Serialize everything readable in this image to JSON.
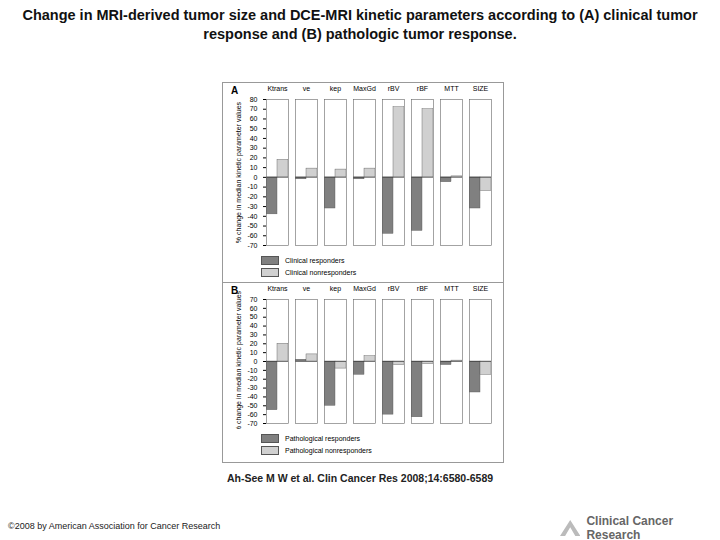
{
  "title": "Change in MRI-derived tumor size and DCE-MRI kinetic parameters according to (A) clinical tumor response and (B) pathologic tumor response.",
  "caption": "Ah-See M W et al. Clin Cancer Res 2008;14:6580-6589",
  "copyright": "©2008 by American Association for Cancer Research",
  "logo": "Clinical Cancer Research",
  "chart_data": [
    {
      "type": "bar",
      "panel": "A",
      "y_label": "% change in median kinetic parameter values",
      "categories": [
        "Ktrans",
        "ve",
        "kep",
        "MaxGd",
        "rBV",
        "rBF",
        "MTT",
        "SIZE"
      ],
      "series": [
        {
          "name": "Clinical responders",
          "color": "#808080",
          "values": [
            -38,
            -2,
            -32,
            -2,
            -58,
            -55,
            -5,
            -32
          ]
        },
        {
          "name": "Clinical nonresponders",
          "color": "#d0d0d0",
          "values": [
            18,
            9,
            8,
            9,
            72,
            70,
            1,
            -14
          ]
        }
      ],
      "ylim": [
        -70,
        80
      ],
      "yticks": [
        -70,
        -60,
        -50,
        -40,
        -30,
        -20,
        -10,
        0,
        10,
        20,
        30,
        40,
        50,
        60,
        70,
        80
      ]
    },
    {
      "type": "bar",
      "panel": "B",
      "y_label": "% change in median kinetic parameter values",
      "categories": [
        "Ktrans",
        "ve",
        "kep",
        "MaxGd",
        "rBV",
        "rBF",
        "MTT",
        "SIZE"
      ],
      "series": [
        {
          "name": "Pathological responders",
          "color": "#808080",
          "values": [
            -55,
            2,
            -50,
            -15,
            -60,
            -63,
            -4,
            -35
          ]
        },
        {
          "name": "Pathological nonresponders",
          "color": "#d0d0d0",
          "values": [
            20,
            8,
            -8,
            6,
            -4,
            -3,
            1,
            -15
          ]
        }
      ],
      "ylim": [
        -70,
        70
      ],
      "yticks": [
        -70,
        -60,
        -50,
        -40,
        -30,
        -20,
        -10,
        0,
        10,
        20,
        30,
        40,
        50,
        60,
        70
      ]
    }
  ]
}
